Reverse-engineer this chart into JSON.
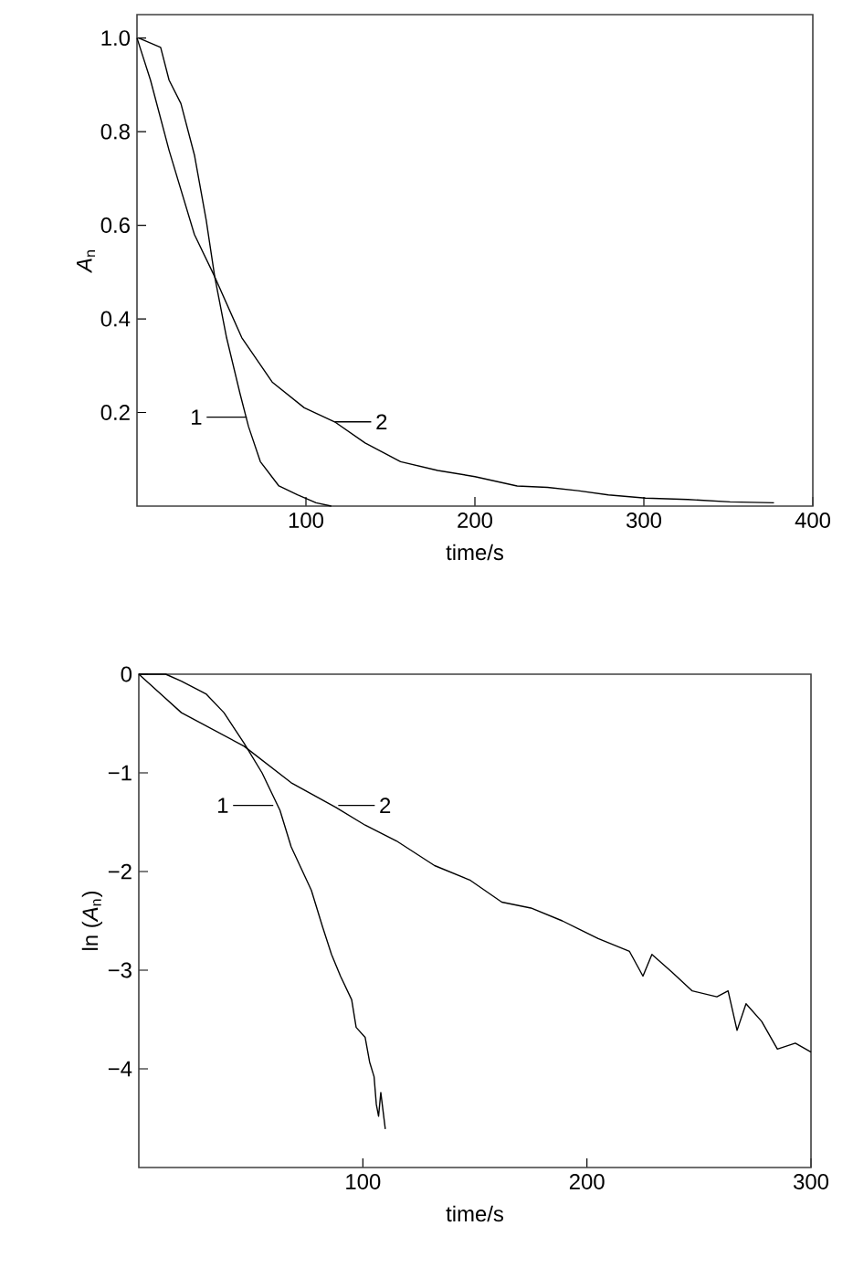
{
  "chart_data": [
    {
      "type": "line",
      "xlabel": "time/s",
      "ylabel": "*A*$_{n}$",
      "xlim": [
        0,
        400
      ],
      "ylim": [
        0,
        1.05
      ],
      "xticks": [
        100,
        200,
        300,
        400
      ],
      "yticks": [
        0.2,
        0.4,
        0.6,
        0.8,
        {
          "value": 1,
          "label": "1.0"
        }
      ],
      "series": [
        {
          "color": "#000000",
          "x": [
            1,
            14,
            19,
            26,
            34,
            41,
            46,
            53,
            61,
            66,
            73,
            84,
            95,
            106,
            115
          ],
          "values": [
            1.0,
            0.98,
            0.91,
            0.86,
            0.75,
            0.61,
            0.49,
            0.36,
            0.24,
            0.17,
            0.095,
            0.043,
            0.024,
            0.007,
            0.0
          ]
        },
        {
          "color": "#000000",
          "x": [
            0,
            8,
            19,
            34,
            46,
            62,
            80,
            99,
            117,
            135,
            156,
            178,
            200,
            225,
            243,
            261,
            279,
            301,
            326,
            351,
            377
          ],
          "values": [
            1.0,
            0.91,
            0.76,
            0.58,
            0.49,
            0.36,
            0.265,
            0.21,
            0.18,
            0.135,
            0.095,
            0.076,
            0.063,
            0.043,
            0.04,
            0.033,
            0.024,
            0.017,
            0.014,
            0.009,
            0.007
          ]
        }
      ],
      "annotations": [
        {
          "text": "1",
          "x": 65,
          "y": 0.19
        },
        {
          "text": "2",
          "x": 117,
          "y": 0.18
        }
      ]
    },
    {
      "type": "line",
      "xlabel": "time/s",
      "ylabel": "ln (*A*$_{n}$)",
      "xlim": [
        0,
        300
      ],
      "ylim": [
        -5,
        0
      ],
      "xticks": [
        100,
        200,
        300
      ],
      "yticks": [
        {
          "value": -4,
          "label": "−4"
        },
        {
          "value": -3,
          "label": "−3"
        },
        {
          "value": -2,
          "label": "−2"
        },
        {
          "value": -1,
          "label": "−1"
        },
        0
      ],
      "series": [
        {
          "color": "#000000",
          "x": [
            0,
            12,
            19,
            30,
            38,
            47,
            55,
            63,
            68,
            77,
            82,
            86,
            90,
            95,
            97,
            101,
            103,
            105,
            106,
            107,
            108,
            110
          ],
          "values": [
            0,
            0,
            -0.07,
            -0.2,
            -0.39,
            -0.7,
            -1.0,
            -1.38,
            -1.75,
            -2.19,
            -2.56,
            -2.84,
            -3.06,
            -3.3,
            -3.58,
            -3.68,
            -3.93,
            -4.08,
            -4.36,
            -4.48,
            -4.24,
            -4.61
          ]
        },
        {
          "color": "#000000",
          "x": [
            0,
            19,
            47,
            68,
            88,
            101,
            115,
            132,
            148,
            162,
            175,
            189,
            205,
            219,
            225,
            229,
            238,
            247,
            258,
            263,
            267,
            271,
            278,
            285,
            293,
            300
          ],
          "values": [
            0,
            -0.39,
            -0.73,
            -1.1,
            -1.35,
            -1.53,
            -1.69,
            -1.94,
            -2.09,
            -2.31,
            -2.37,
            -2.5,
            -2.68,
            -2.81,
            -3.06,
            -2.84,
            -3.02,
            -3.21,
            -3.27,
            -3.21,
            -3.61,
            -3.34,
            -3.52,
            -3.8,
            -3.74,
            -3.83
          ]
        }
      ],
      "annotations": [
        {
          "text": "1",
          "x": 60,
          "y": -1.33
        },
        {
          "text": "2",
          "x": 89,
          "y": -1.33
        }
      ]
    }
  ]
}
